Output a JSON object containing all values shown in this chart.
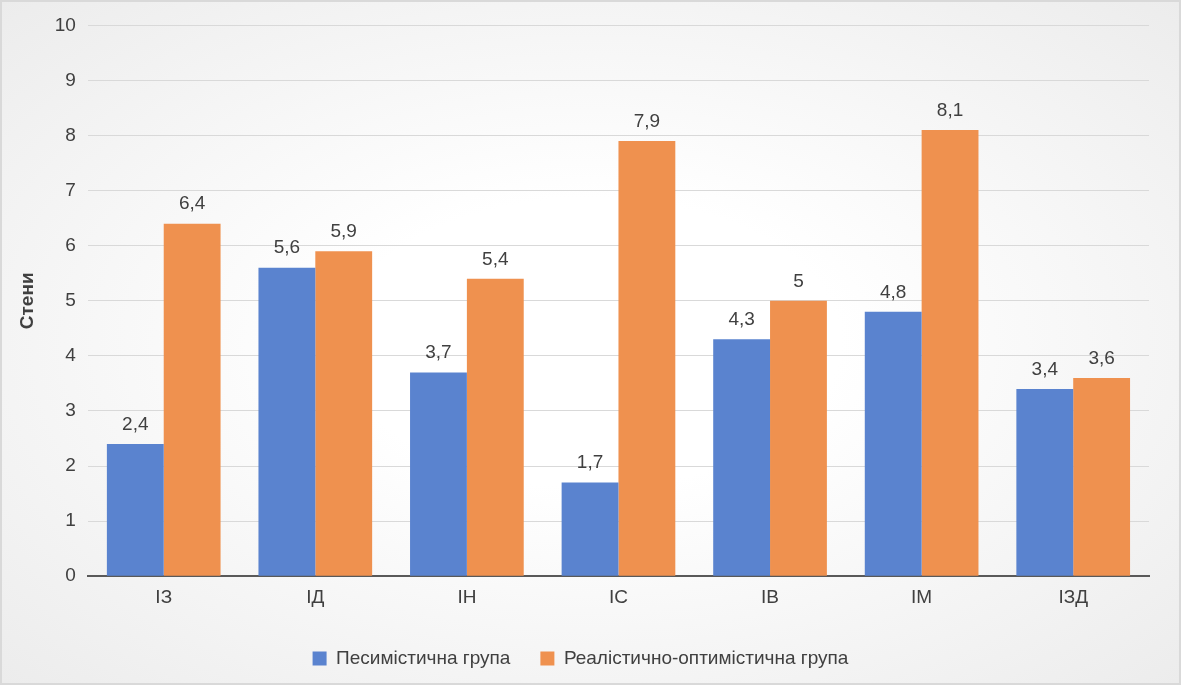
{
  "chart_data": {
    "type": "bar",
    "ylabel": "Стени",
    "categories": [
      "ІЗ",
      "ІД",
      "ІН",
      "ІС",
      "ІВ",
      "ІМ",
      "ІЗД"
    ],
    "series": [
      {
        "name": "Песимістична група",
        "color": "#5a83cf",
        "values": [
          2.4,
          5.6,
          3.7,
          1.7,
          4.3,
          4.8,
          3.4
        ],
        "value_labels": [
          "2,4",
          "5,6",
          "3,7",
          "1,7",
          "4,3",
          "4,8",
          "3,4"
        ]
      },
      {
        "name": "Реалістично-оптимістична група",
        "color": "#ef914f",
        "values": [
          6.4,
          5.9,
          5.4,
          7.9,
          5,
          8.1,
          3.6
        ],
        "value_labels": [
          "6,4",
          "5,9",
          "5,4",
          "7,9",
          "5",
          "8,1",
          "3,6"
        ]
      }
    ],
    "ylim": [
      0,
      10
    ],
    "yticks": [
      0,
      1,
      2,
      3,
      4,
      5,
      6,
      7,
      8,
      9,
      10
    ],
    "grid": "y",
    "legend": "bottom"
  }
}
